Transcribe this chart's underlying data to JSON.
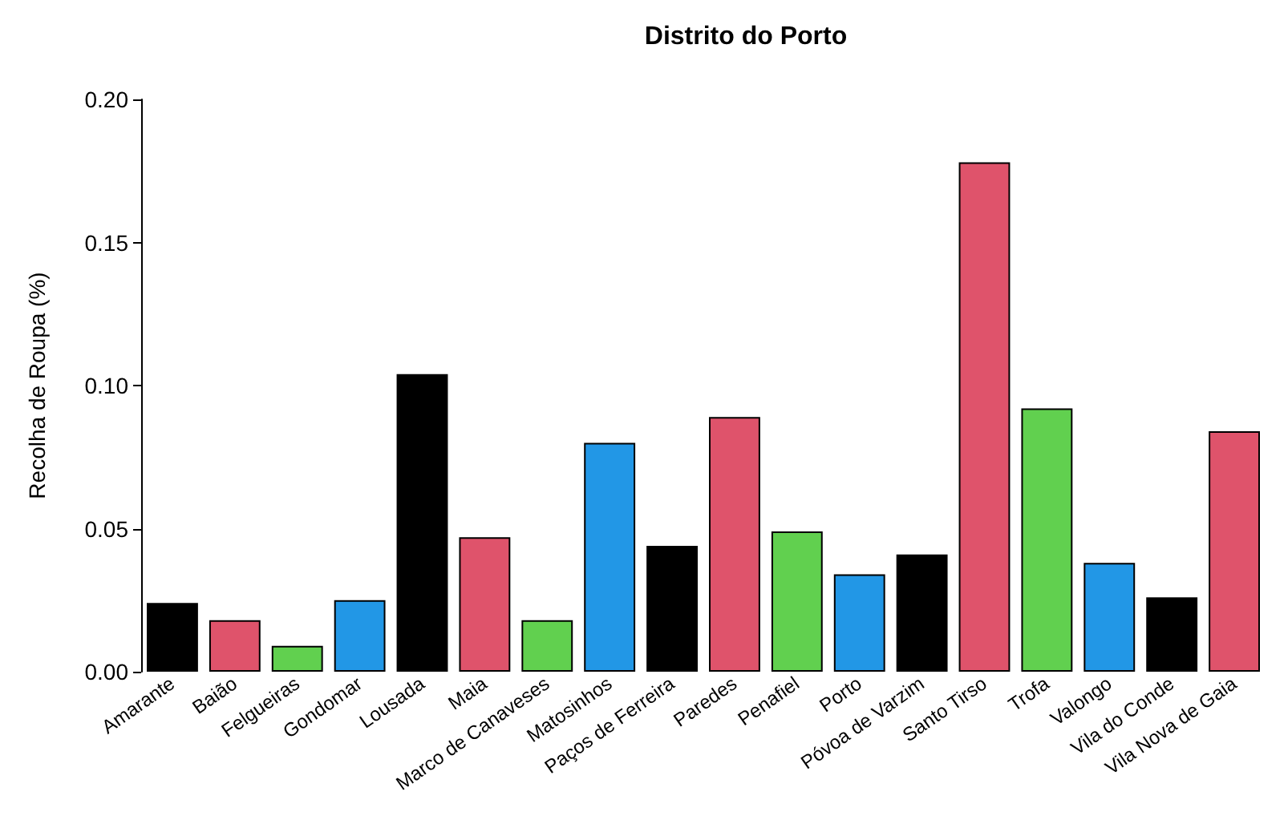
{
  "chart_data": {
    "type": "bar",
    "title": "Distrito do Porto",
    "ylabel": "Recolha de Roupa (%)",
    "categories": [
      "Amarante",
      "Baião",
      "Felgueiras",
      "Gondomar",
      "Lousada",
      "Maia",
      "Marco de Canaveses",
      "Matosinhos",
      "Paços de Ferreira",
      "Paredes",
      "Penafiel",
      "Porto",
      "Póvoa de Varzim",
      "Santo Tirso",
      "Trofa",
      "Valongo",
      "Vila do Conde",
      "Vila Nova de Gaia"
    ],
    "values": [
      0.024,
      0.018,
      0.009,
      0.025,
      0.104,
      0.047,
      0.018,
      0.08,
      0.044,
      0.089,
      0.049,
      0.034,
      0.041,
      0.178,
      0.092,
      0.038,
      0.026,
      0.084
    ],
    "colors": [
      "#000000",
      "#df536b",
      "#61d04f",
      "#2297e6",
      "#000000",
      "#df536b",
      "#61d04f",
      "#2297e6",
      "#000000",
      "#df536b",
      "#61d04f",
      "#2297e6",
      "#000000",
      "#df536b",
      "#61d04f",
      "#2297e6",
      "#000000",
      "#df536b"
    ],
    "ylim": [
      0,
      0.2
    ],
    "yticks": [
      {
        "value": 0,
        "label": "0.00"
      },
      {
        "value": 0.05,
        "label": "0.05"
      },
      {
        "value": 0.1,
        "label": "0.10"
      },
      {
        "value": 0.15,
        "label": "0.15"
      },
      {
        "value": 0.2,
        "label": "0.20"
      }
    ],
    "grid": false
  }
}
